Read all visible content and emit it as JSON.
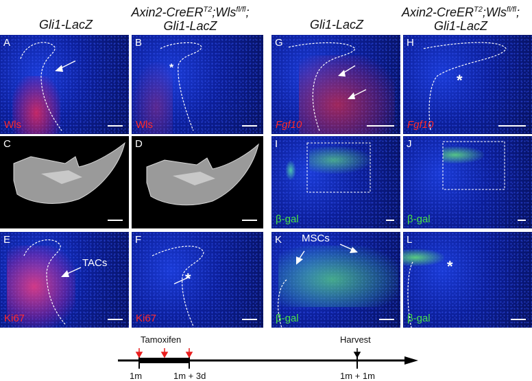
{
  "headers": {
    "col1": "Gli1-LacZ",
    "col2_line1": "Axin2-CreER",
    "col2_sup1": "T2",
    "col2_mid": ";Wls",
    "col2_sup2": "fl/fl",
    "col2_end": ";",
    "col2_line2": "Gli1-LacZ",
    "col3": "Gli1-LacZ",
    "col4_line1": "Axin2-CreER",
    "col4_sup1": "T2",
    "col4_mid": ";Wls",
    "col4_sup2": "fl/fl",
    "col4_end": ";",
    "col4_line2": "Gli1-LacZ"
  },
  "panels": {
    "A": {
      "letter": "A",
      "stain": "Wls"
    },
    "B": {
      "letter": "B",
      "stain": "Wls",
      "mark": "*"
    },
    "C": {
      "letter": "C"
    },
    "D": {
      "letter": "D"
    },
    "E": {
      "letter": "E",
      "stain": "Ki67",
      "annotation": "TACs"
    },
    "F": {
      "letter": "F",
      "stain": "Ki67",
      "mark": "*"
    },
    "G": {
      "letter": "G",
      "stain": "Fgf10"
    },
    "H": {
      "letter": "H",
      "stain": "Fgf10",
      "mark": "*"
    },
    "I": {
      "letter": "I",
      "stain": "β-gal"
    },
    "J": {
      "letter": "J",
      "stain": "β-gal"
    },
    "K": {
      "letter": "K",
      "stain": "β-gal",
      "annotation": "MSCs"
    },
    "L": {
      "letter": "L",
      "stain": "β-gal",
      "mark": "*"
    }
  },
  "timeline": {
    "tamoxifen": "Tamoxifen",
    "harvest": "Harvest",
    "t1": "1m",
    "t2": "1m + 3d",
    "t3": "1m + 1m"
  },
  "colors": {
    "dapi": "#1a3bd6",
    "red_stain": "#ff2a2a",
    "green_stain": "#48e048",
    "arrow_red": "#e81e1e"
  }
}
